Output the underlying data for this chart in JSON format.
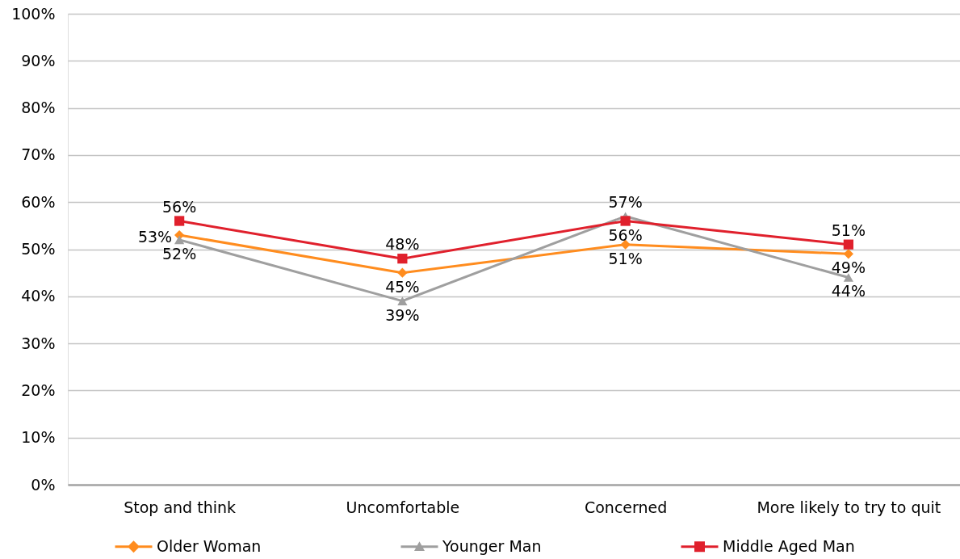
{
  "chart_data": {
    "type": "line",
    "categories": [
      "Stop and think",
      "Uncomfortable",
      "Concerned",
      "More likely to try to quit"
    ],
    "series": [
      {
        "name": "Older Woman",
        "color": "#ff8c1e",
        "marker": "diamond",
        "values": [
          53,
          45,
          51,
          49
        ],
        "value_labels": [
          "53%",
          "45%",
          "51%",
          "49%"
        ]
      },
      {
        "name": "Younger Man",
        "color": "#9f9f9f",
        "marker": "triangle",
        "values": [
          52,
          39,
          57,
          44
        ],
        "value_labels": [
          "52%",
          "39%",
          "57%",
          "44%"
        ]
      },
      {
        "name": "Middle Aged Man",
        "color": "#e0202c",
        "marker": "square",
        "values": [
          56,
          48,
          56,
          51
        ],
        "value_labels": [
          "56%",
          "48%",
          "56%",
          "51%"
        ]
      }
    ],
    "ylim": [
      0,
      100
    ],
    "yticks": [
      {
        "value": 0,
        "label": "0%"
      },
      {
        "value": 10,
        "label": "10%"
      },
      {
        "value": 20,
        "label": "20%"
      },
      {
        "value": 30,
        "label": "30%"
      },
      {
        "value": 40,
        "label": "40%"
      },
      {
        "value": 50,
        "label": "50%"
      },
      {
        "value": 60,
        "label": "60%"
      },
      {
        "value": 70,
        "label": "70%"
      },
      {
        "value": 80,
        "label": "80%"
      },
      {
        "value": 90,
        "label": "90%"
      },
      {
        "value": 100,
        "label": "100%"
      }
    ],
    "grid": "y",
    "legend": "bottom",
    "line_style": "solid"
  }
}
